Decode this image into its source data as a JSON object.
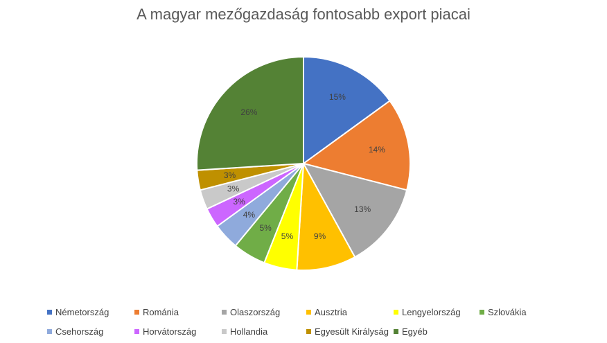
{
  "chart_data": {
    "type": "pie",
    "title": "A magyar mezőgazdaság fontosabb export piacai",
    "categories": [
      "Németország",
      "Románia",
      "Olaszország",
      "Ausztria",
      "Lengyelország",
      "Szlovákia",
      "Csehország",
      "Horvátország",
      "Hollandia",
      "Egyesült Királyság",
      "Egyéb"
    ],
    "values": [
      15,
      14,
      13,
      9,
      5,
      5,
      4,
      3,
      3,
      3,
      26
    ],
    "labels": [
      "15%",
      "14%",
      "13%",
      "9%",
      "5%",
      "5%",
      "4%",
      "3%",
      "3%",
      "3%",
      "26%"
    ],
    "colors": [
      "#4472C4",
      "#ED7D31",
      "#A5A5A5",
      "#FFC000",
      "#FFFF00",
      "#70AD47",
      "#8FAADC",
      "#CC66FF",
      "#C9C9C9",
      "#BF9000",
      "#548235"
    ],
    "legend_position": "bottom",
    "start_angle": "12 o'clock, clockwise"
  }
}
